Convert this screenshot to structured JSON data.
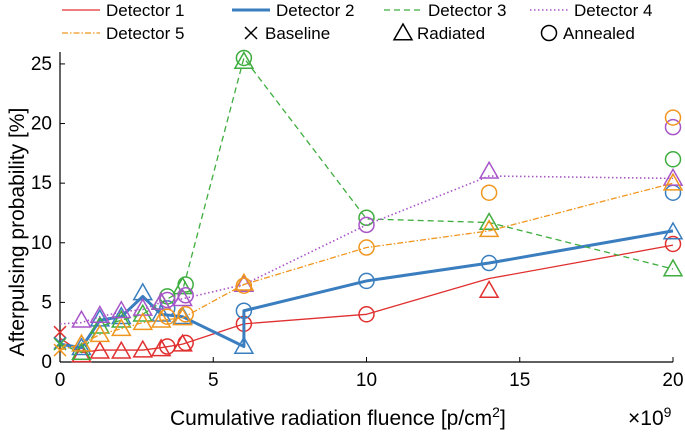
{
  "chart_data": {
    "type": "line",
    "xlabel_main": "Cumulative radiation fluence [p/cm",
    "xlabel_sup": "2",
    "xlabel_end": "]",
    "ylabel": "Afterpulsing probability [%]",
    "x_multiplier_base": "×10",
    "x_multiplier_exp": "9",
    "xlim": [
      0,
      20
    ],
    "ylim": [
      0,
      26
    ],
    "x_ticks": [
      0,
      5,
      10,
      15,
      20
    ],
    "y_ticks": [
      0,
      5,
      10,
      15,
      20,
      25
    ],
    "grid": false,
    "legend_position": "top",
    "series": [
      {
        "name": "Detector 1",
        "color": "#e03030",
        "dash": "",
        "width": 1.3,
        "x": [
          0,
          0.7,
          1.3,
          2,
          2.7,
          3.3,
          4,
          6,
          10,
          14,
          20
        ],
        "y": [
          2.0,
          0.8,
          1.0,
          1.0,
          1.0,
          1.2,
          1.5,
          3.2,
          4.0,
          7.0,
          9.8
        ],
        "markers": [
          {
            "x": 0,
            "y": 2.5,
            "m": "cross"
          },
          {
            "x": 0.7,
            "y": 0.6,
            "m": "tri"
          },
          {
            "x": 1.3,
            "y": 0.9,
            "m": "tri"
          },
          {
            "x": 2,
            "y": 0.9,
            "m": "tri"
          },
          {
            "x": 2.7,
            "y": 1.0,
            "m": "tri"
          },
          {
            "x": 3.3,
            "y": 1.1,
            "m": "tri"
          },
          {
            "x": 3.5,
            "y": 1.3,
            "m": "circ"
          },
          {
            "x": 4,
            "y": 1.5,
            "m": "tri"
          },
          {
            "x": 4.1,
            "y": 1.6,
            "m": "circ"
          },
          {
            "x": 6,
            "y": 3.2,
            "m": "circ"
          },
          {
            "x": 10,
            "y": 4.0,
            "m": "circ"
          },
          {
            "x": 14,
            "y": 6.0,
            "m": "tri"
          },
          {
            "x": 20,
            "y": 9.9,
            "m": "circ"
          }
        ]
      },
      {
        "name": "Detector 2",
        "color": "#3a7ebf",
        "dash": "",
        "width": 3,
        "x": [
          0,
          0.7,
          1.3,
          2,
          2.7,
          3.3,
          4,
          6,
          6,
          10,
          14,
          20
        ],
        "y": [
          1.5,
          1.2,
          3.5,
          3.8,
          5.5,
          4.0,
          3.8,
          1.3,
          4.3,
          6.8,
          8.3,
          11.0
        ],
        "markers": [
          {
            "x": 0,
            "y": 1.6,
            "m": "cross"
          },
          {
            "x": 0.7,
            "y": 1.2,
            "m": "tri"
          },
          {
            "x": 1.3,
            "y": 3.6,
            "m": "tri"
          },
          {
            "x": 2,
            "y": 3.8,
            "m": "tri"
          },
          {
            "x": 2.7,
            "y": 5.8,
            "m": "tri"
          },
          {
            "x": 3.3,
            "y": 4.0,
            "m": "tri"
          },
          {
            "x": 3.5,
            "y": 4.5,
            "m": "circ"
          },
          {
            "x": 4,
            "y": 3.8,
            "m": "tri"
          },
          {
            "x": 6,
            "y": 1.3,
            "m": "tri"
          },
          {
            "x": 6,
            "y": 4.3,
            "m": "circ"
          },
          {
            "x": 10,
            "y": 6.8,
            "m": "circ"
          },
          {
            "x": 14,
            "y": 8.3,
            "m": "circ"
          },
          {
            "x": 20,
            "y": 14.2,
            "m": "circ"
          },
          {
            "x": 20,
            "y": 10.9,
            "m": "tri"
          }
        ]
      },
      {
        "name": "Detector 3",
        "color": "#3fad3f",
        "dash": "6,4",
        "width": 1.3,
        "x": [
          0,
          0.7,
          1.3,
          2,
          2.7,
          3.3,
          4,
          6,
          10,
          14,
          20
        ],
        "y": [
          1.5,
          0.8,
          3.0,
          3.5,
          4.0,
          5.0,
          6.0,
          25.5,
          12.0,
          11.7,
          7.8
        ],
        "markers": [
          {
            "x": 0,
            "y": 1.5,
            "m": "cross"
          },
          {
            "x": 0.7,
            "y": 0.8,
            "m": "tri"
          },
          {
            "x": 1.3,
            "y": 3.0,
            "m": "tri"
          },
          {
            "x": 2,
            "y": 3.5,
            "m": "tri"
          },
          {
            "x": 2.7,
            "y": 4.0,
            "m": "tri"
          },
          {
            "x": 3.3,
            "y": 5.0,
            "m": "tri"
          },
          {
            "x": 3.5,
            "y": 5.5,
            "m": "circ"
          },
          {
            "x": 4,
            "y": 6.3,
            "m": "tri"
          },
          {
            "x": 4.1,
            "y": 6.5,
            "m": "circ"
          },
          {
            "x": 6,
            "y": 25.5,
            "m": "circ"
          },
          {
            "x": 6,
            "y": 25.2,
            "m": "tri"
          },
          {
            "x": 10,
            "y": 12.1,
            "m": "circ"
          },
          {
            "x": 14,
            "y": 11.7,
            "m": "tri"
          },
          {
            "x": 20,
            "y": 17.0,
            "m": "circ"
          },
          {
            "x": 20,
            "y": 7.8,
            "m": "tri"
          }
        ]
      },
      {
        "name": "Detector 4",
        "color": "#a855c8",
        "dash": "1.5,2.5",
        "width": 1.6,
        "x": [
          0,
          0.7,
          1.3,
          2,
          2.7,
          3.3,
          4,
          6,
          10,
          14,
          20
        ],
        "y": [
          3.2,
          3.3,
          3.8,
          4.2,
          4.4,
          5.0,
          5.3,
          6.5,
          11.5,
          15.6,
          15.4
        ],
        "markers": [
          {
            "x": 0.7,
            "y": 3.5,
            "m": "tri"
          },
          {
            "x": 1.3,
            "y": 3.9,
            "m": "tri"
          },
          {
            "x": 2,
            "y": 4.3,
            "m": "tri"
          },
          {
            "x": 2.7,
            "y": 4.5,
            "m": "tri"
          },
          {
            "x": 3.3,
            "y": 5.0,
            "m": "tri"
          },
          {
            "x": 3.5,
            "y": 5.2,
            "m": "circ"
          },
          {
            "x": 4,
            "y": 5.3,
            "m": "tri"
          },
          {
            "x": 4.1,
            "y": 5.6,
            "m": "circ"
          },
          {
            "x": 6,
            "y": 6.5,
            "m": "tri"
          },
          {
            "x": 10,
            "y": 11.5,
            "m": "circ"
          },
          {
            "x": 14,
            "y": 16.0,
            "m": "tri"
          },
          {
            "x": 20,
            "y": 19.7,
            "m": "circ"
          },
          {
            "x": 20,
            "y": 15.4,
            "m": "tri"
          }
        ]
      },
      {
        "name": "Detector 5",
        "color": "#f0961e",
        "dash": "6,2,1.5,2",
        "width": 1.3,
        "x": [
          0,
          0.7,
          1.3,
          2,
          2.7,
          3.3,
          4,
          6,
          10,
          14,
          20
        ],
        "y": [
          1.0,
          1.5,
          2.3,
          2.8,
          3.3,
          3.5,
          3.7,
          6.5,
          9.6,
          11.0,
          15.0
        ],
        "markers": [
          {
            "x": 0,
            "y": 1.0,
            "m": "cross"
          },
          {
            "x": 0.7,
            "y": 1.5,
            "m": "tri"
          },
          {
            "x": 1.3,
            "y": 2.3,
            "m": "tri"
          },
          {
            "x": 2,
            "y": 2.8,
            "m": "tri"
          },
          {
            "x": 2.7,
            "y": 3.3,
            "m": "tri"
          },
          {
            "x": 3.3,
            "y": 3.5,
            "m": "tri"
          },
          {
            "x": 3.5,
            "y": 3.8,
            "m": "circ"
          },
          {
            "x": 4,
            "y": 3.7,
            "m": "tri"
          },
          {
            "x": 4.1,
            "y": 4.0,
            "m": "circ"
          },
          {
            "x": 6,
            "y": 6.4,
            "m": "circ"
          },
          {
            "x": 6,
            "y": 6.6,
            "m": "tri"
          },
          {
            "x": 10,
            "y": 9.6,
            "m": "circ"
          },
          {
            "x": 14,
            "y": 14.2,
            "m": "circ"
          },
          {
            "x": 14,
            "y": 11.1,
            "m": "tri"
          },
          {
            "x": 20,
            "y": 20.5,
            "m": "circ"
          },
          {
            "x": 20,
            "y": 15.0,
            "m": "tri"
          }
        ]
      }
    ],
    "marker_legend": [
      {
        "name": "Baseline",
        "m": "cross"
      },
      {
        "name": "Radiated",
        "m": "tri"
      },
      {
        "name": "Annealed",
        "m": "circ"
      }
    ]
  }
}
